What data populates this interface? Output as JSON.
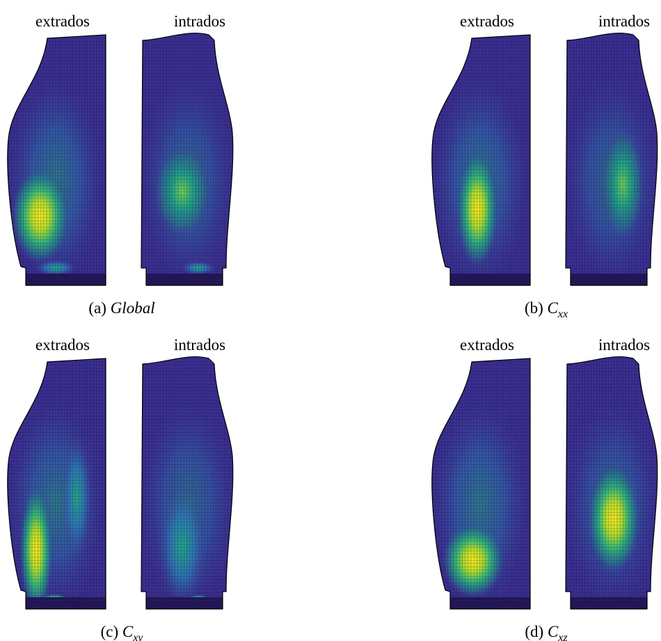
{
  "panels": [
    {
      "left_label": "extrados",
      "right_label": "intrados",
      "caption": {
        "tag": "(a)",
        "text": "Global"
      }
    },
    {
      "left_label": "extrados",
      "right_label": "intrados",
      "caption": {
        "tag": "(b)",
        "symbol": "C",
        "subscript": "xx"
      }
    },
    {
      "left_label": "extrados",
      "right_label": "intrados",
      "caption": {
        "tag": "(c)",
        "symbol": "C",
        "subscript": "xy"
      }
    },
    {
      "left_label": "extrados",
      "right_label": "intrados",
      "caption": {
        "tag": "(d)",
        "symbol": "C",
        "subscript": "xz"
      }
    }
  ]
}
